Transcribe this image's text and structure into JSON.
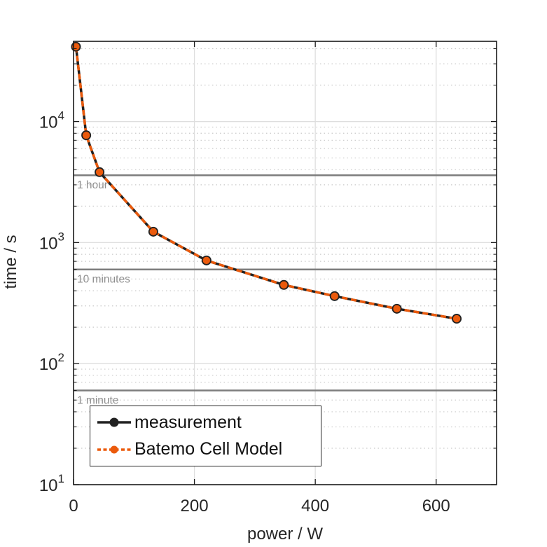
{
  "chart_data": {
    "type": "line",
    "title": "",
    "xlabel": "power / W",
    "ylabel": "time / s",
    "xlim": [
      0,
      700
    ],
    "ylim": [
      10,
      46000
    ],
    "x_scale": "linear",
    "y_scale": "log10",
    "x_ticks": [
      0,
      200,
      400,
      600
    ],
    "y_ticks_base": "10",
    "y_ticks_exponents": [
      1,
      2,
      3,
      4
    ],
    "grid": "major-solid, y-minor-dotted",
    "x": [
      4,
      21,
      43,
      132,
      220,
      348,
      432,
      535,
      634
    ],
    "series": [
      {
        "name": "measurement",
        "color": "#212121",
        "line_style": "solid",
        "marker": "filled-circle",
        "values": [
          41500,
          7700,
          3820,
          1230,
          712,
          447,
          361,
          284,
          235
        ]
      },
      {
        "name": "Batemo Cell Model",
        "color": "#EB5A0C",
        "line_style": "dashed",
        "marker": "filled-circle",
        "values": [
          41500,
          7700,
          3820,
          1230,
          712,
          447,
          361,
          284,
          235
        ]
      }
    ],
    "reference_lines": [
      {
        "label": "1 hour",
        "value": 3600
      },
      {
        "label": "10 minutes",
        "value": 600
      },
      {
        "label": "1 minute",
        "value": 60
      }
    ],
    "legend_position": "bottom-left-inside"
  },
  "legend": {
    "entries": [
      {
        "label": "measurement"
      },
      {
        "label": "Batemo Cell Model"
      }
    ]
  },
  "colors": {
    "measurement": "#212121",
    "model_orange": "#EB5A0C",
    "reference_line": "#7d7d7d",
    "reference_text": "#8f8f8f",
    "grid_major": "#dedede",
    "grid_minor": "#c9c9c9",
    "axis_box": "#1a1a1a",
    "text": "#262626"
  }
}
